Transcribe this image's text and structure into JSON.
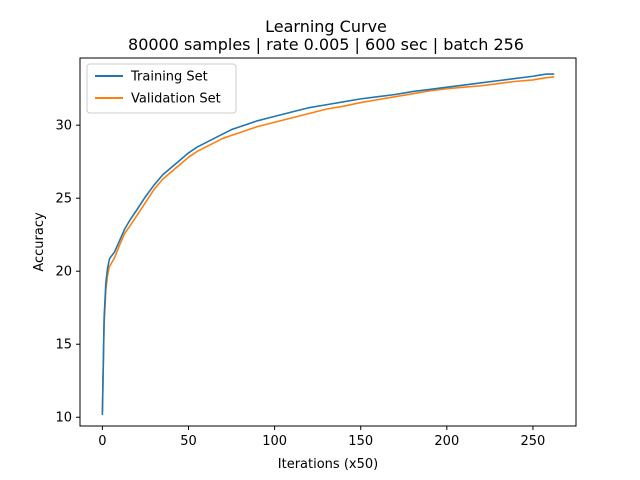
{
  "chart_data": {
    "type": "line",
    "title": "Learning Curve",
    "subtitle": "80000 samples | rate 0.005 | 600 sec | batch 256",
    "xlabel": "Iterations (x50)",
    "ylabel": "Accuracy",
    "xlim": [
      -13,
      275
    ],
    "ylim": [
      9.4,
      34.6
    ],
    "xticks": [
      0,
      50,
      100,
      150,
      200,
      250
    ],
    "yticks": [
      10,
      15,
      20,
      25,
      30
    ],
    "grid": false,
    "legend_position": "top-left",
    "x": [
      0,
      1,
      2,
      3,
      4,
      5,
      7,
      10,
      13,
      16,
      20,
      25,
      30,
      35,
      40,
      45,
      50,
      55,
      60,
      65,
      70,
      75,
      80,
      90,
      100,
      110,
      120,
      130,
      140,
      150,
      160,
      170,
      180,
      190,
      200,
      210,
      220,
      230,
      240,
      250,
      255,
      258,
      262
    ],
    "series": [
      {
        "name": "Training Set",
        "color": "#1f77b4",
        "values": [
          10.2,
          16.8,
          19.2,
          20.2,
          20.8,
          21.0,
          21.3,
          22.1,
          22.9,
          23.5,
          24.2,
          25.1,
          25.9,
          26.6,
          27.1,
          27.6,
          28.1,
          28.5,
          28.8,
          29.1,
          29.4,
          29.7,
          29.9,
          30.3,
          30.6,
          30.9,
          31.2,
          31.4,
          31.6,
          31.8,
          31.95,
          32.1,
          32.3,
          32.45,
          32.6,
          32.75,
          32.9,
          33.05,
          33.2,
          33.35,
          33.45,
          33.5,
          33.5
        ]
      },
      {
        "name": "Validation Set",
        "color": "#ff7f0e",
        "values": [
          10.4,
          16.3,
          18.7,
          19.7,
          20.3,
          20.5,
          20.9,
          21.8,
          22.6,
          23.1,
          23.8,
          24.7,
          25.6,
          26.3,
          26.8,
          27.3,
          27.8,
          28.2,
          28.5,
          28.8,
          29.1,
          29.3,
          29.5,
          29.9,
          30.2,
          30.5,
          30.8,
          31.1,
          31.3,
          31.55,
          31.75,
          31.95,
          32.15,
          32.35,
          32.5,
          32.6,
          32.7,
          32.85,
          33.0,
          33.1,
          33.2,
          33.25,
          33.3
        ]
      }
    ]
  }
}
